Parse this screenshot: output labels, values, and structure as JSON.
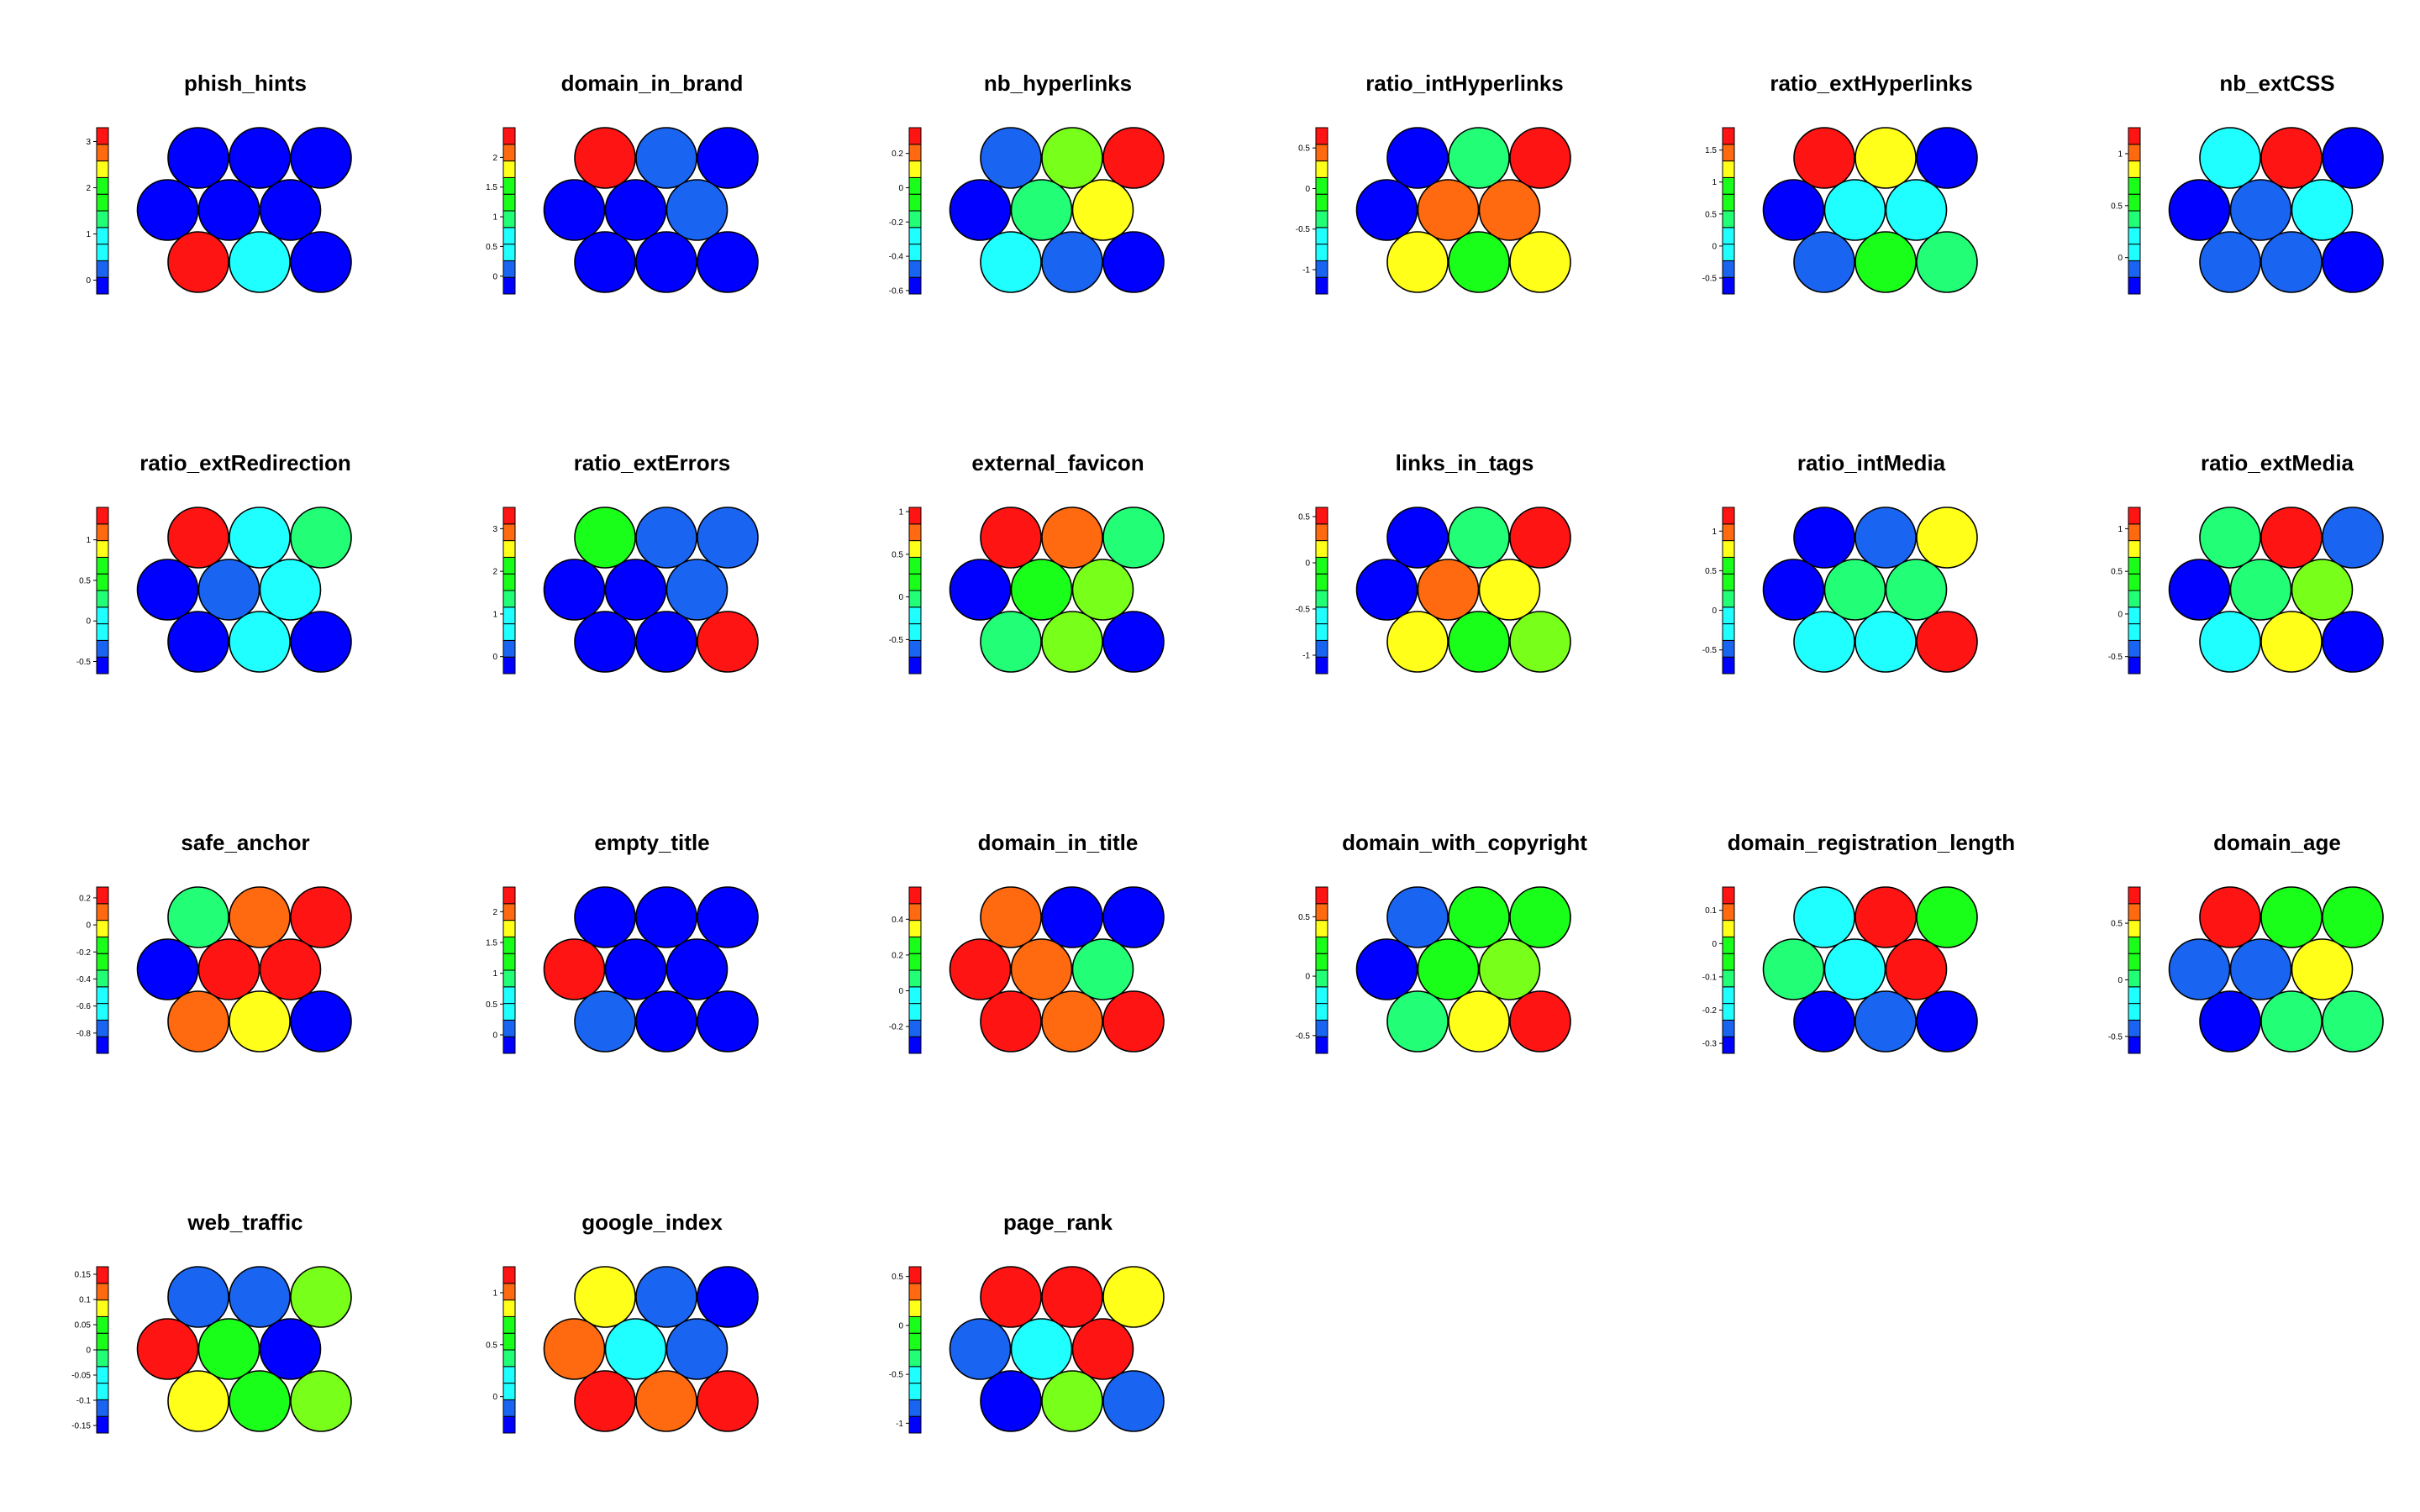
{
  "figure": {
    "palette": [
      "#0000ff",
      "#1764ff",
      "#1aff ff",
      "#20ffff",
      "#22ff6e",
      "#1aff1a",
      "#78ff1a",
      "#ffff1a",
      "#ff6a10",
      "#ff1414"
    ],
    "tile_colors": {
      "blue": "#0000ff",
      "lightblue": "#1a64f2",
      "cyan": "#20ffff",
      "mint": "#22ff77",
      "green": "#1aff1a",
      "lime": "#78ff1a",
      "yellow": "#ffff1a",
      "orange": "#ff6a10",
      "red": "#ff1414"
    }
  },
  "chart_data": [
    {
      "type": "som-heatmap",
      "title": "phish_hints",
      "ticks": [
        "0",
        "1",
        "2",
        "3"
      ],
      "tick_values": [
        0,
        1,
        2,
        3
      ],
      "range": [
        -0.3,
        3.3
      ],
      "nodes": [
        "blue",
        "blue",
        "blue",
        "blue",
        "blue",
        "blue",
        "red",
        "cyan",
        "blue"
      ]
    },
    {
      "type": "som-heatmap",
      "title": "domain_in_brand",
      "ticks": [
        "0",
        "0.5",
        "1",
        "1.5",
        "2"
      ],
      "tick_values": [
        0,
        0.5,
        1,
        1.5,
        2
      ],
      "range": [
        -0.3,
        2.5
      ],
      "nodes": [
        "red",
        "lightblue",
        "blue",
        "blue",
        "blue",
        "lightblue",
        "blue",
        "blue",
        "blue"
      ]
    },
    {
      "type": "som-heatmap",
      "title": "nb_hyperlinks",
      "ticks": [
        "-0.6",
        "-0.4",
        "-0.2",
        "0",
        "0.2"
      ],
      "tick_values": [
        -0.6,
        -0.4,
        -0.2,
        0,
        0.2
      ],
      "range": [
        -0.62,
        0.35
      ],
      "nodes": [
        "lightblue",
        "lime",
        "red",
        "blue",
        "mint",
        "yellow",
        "cyan",
        "lightblue",
        "blue"
      ]
    },
    {
      "type": "som-heatmap",
      "title": "ratio_intHyperlinks",
      "ticks": [
        "-1",
        "-0.5",
        "0",
        "0.5"
      ],
      "tick_values": [
        -1,
        -0.5,
        0,
        0.5
      ],
      "range": [
        -1.3,
        0.75
      ],
      "nodes": [
        "blue",
        "mint",
        "red",
        "blue",
        "orange",
        "orange",
        "yellow",
        "green",
        "yellow"
      ]
    },
    {
      "type": "som-heatmap",
      "title": "ratio_extHyperlinks",
      "ticks": [
        "-0.5",
        "0",
        "0.5",
        "1",
        "1.5"
      ],
      "tick_values": [
        -0.5,
        0,
        0.5,
        1,
        1.5
      ],
      "range": [
        -0.75,
        1.85
      ],
      "nodes": [
        "red",
        "yellow",
        "blue",
        "blue",
        "cyan",
        "cyan",
        "lightblue",
        "green",
        "mint"
      ]
    },
    {
      "type": "som-heatmap",
      "title": "nb_extCSS",
      "ticks": [
        "0",
        "0.5",
        "1"
      ],
      "tick_values": [
        0,
        0.5,
        1
      ],
      "range": [
        -0.35,
        1.25
      ],
      "nodes": [
        "cyan",
        "red",
        "blue",
        "blue",
        "lightblue",
        "cyan",
        "lightblue",
        "lightblue",
        "blue"
      ]
    },
    {
      "type": "som-heatmap",
      "title": "ratio_extRedirection",
      "ticks": [
        "-0.5",
        "0",
        "0.5",
        "1"
      ],
      "tick_values": [
        -0.5,
        0,
        0.5,
        1
      ],
      "range": [
        -0.65,
        1.4
      ],
      "nodes": [
        "red",
        "cyan",
        "mint",
        "blue",
        "lightblue",
        "cyan",
        "blue",
        "cyan",
        "blue"
      ]
    },
    {
      "type": "som-heatmap",
      "title": "ratio_extErrors",
      "ticks": [
        "0",
        "1",
        "2",
        "3"
      ],
      "tick_values": [
        0,
        1,
        2,
        3
      ],
      "range": [
        -0.4,
        3.5
      ],
      "nodes": [
        "green",
        "lightblue",
        "lightblue",
        "blue",
        "blue",
        "lightblue",
        "blue",
        "blue",
        "red"
      ]
    },
    {
      "type": "som-heatmap",
      "title": "external_favicon",
      "ticks": [
        "-0.5",
        "0",
        "0.5",
        "1"
      ],
      "tick_values": [
        -0.5,
        0,
        0.5,
        1
      ],
      "range": [
        -0.9,
        1.05
      ],
      "nodes": [
        "red",
        "orange",
        "mint",
        "blue",
        "green",
        "lime",
        "mint",
        "lime",
        "blue"
      ]
    },
    {
      "type": "som-heatmap",
      "title": "links_in_tags",
      "ticks": [
        "-1",
        "-0.5",
        "0",
        "0.5"
      ],
      "tick_values": [
        -1,
        -0.5,
        0,
        0.5
      ],
      "range": [
        -1.2,
        0.6
      ],
      "nodes": [
        "blue",
        "mint",
        "red",
        "blue",
        "orange",
        "yellow",
        "yellow",
        "green",
        "lime"
      ]
    },
    {
      "type": "som-heatmap",
      "title": "ratio_intMedia",
      "ticks": [
        "-0.5",
        "0",
        "0.5",
        "1"
      ],
      "tick_values": [
        -0.5,
        0,
        0.5,
        1
      ],
      "range": [
        -0.8,
        1.3
      ],
      "nodes": [
        "blue",
        "lightblue",
        "yellow",
        "blue",
        "mint",
        "mint",
        "cyan",
        "cyan",
        "red"
      ]
    },
    {
      "type": "som-heatmap",
      "title": "ratio_extMedia",
      "ticks": [
        "-0.5",
        "0",
        "0.5",
        "1"
      ],
      "tick_values": [
        -0.5,
        0,
        0.5,
        1
      ],
      "range": [
        -0.7,
        1.25
      ],
      "nodes": [
        "mint",
        "red",
        "lightblue",
        "blue",
        "mint",
        "lime",
        "cyan",
        "yellow",
        "blue"
      ]
    },
    {
      "type": "som-heatmap",
      "title": "safe_anchor",
      "ticks": [
        "-0.8",
        "-0.6",
        "-0.4",
        "-0.2",
        "0",
        "0.2"
      ],
      "tick_values": [
        -0.8,
        -0.6,
        -0.4,
        -0.2,
        0,
        0.2
      ],
      "range": [
        -0.95,
        0.28
      ],
      "nodes": [
        "mint",
        "orange",
        "red",
        "blue",
        "red",
        "red",
        "orange",
        "yellow",
        "blue"
      ]
    },
    {
      "type": "som-heatmap",
      "title": "empty_title",
      "ticks": [
        "0",
        "0.5",
        "1",
        "1.5",
        "2"
      ],
      "tick_values": [
        0,
        0.5,
        1,
        1.5,
        2
      ],
      "range": [
        -0.3,
        2.4
      ],
      "nodes": [
        "blue",
        "blue",
        "blue",
        "red",
        "blue",
        "blue",
        "lightblue",
        "blue",
        "blue"
      ]
    },
    {
      "type": "som-heatmap",
      "title": "domain_in_title",
      "ticks": [
        "-0.2",
        "0",
        "0.2",
        "0.4"
      ],
      "tick_values": [
        -0.2,
        0,
        0.2,
        0.4
      ],
      "range": [
        -0.35,
        0.58
      ],
      "nodes": [
        "orange",
        "blue",
        "blue",
        "red",
        "orange",
        "mint",
        "red",
        "orange",
        "red"
      ]
    },
    {
      "type": "som-heatmap",
      "title": "domain_with_copyright",
      "ticks": [
        "-0.5",
        "0",
        "0.5"
      ],
      "tick_values": [
        -0.5,
        0,
        0.5
      ],
      "range": [
        -0.65,
        0.75
      ],
      "nodes": [
        "lightblue",
        "green",
        "green",
        "blue",
        "green",
        "lime",
        "mint",
        "yellow",
        "red"
      ]
    },
    {
      "type": "som-heatmap",
      "title": "domain_registration_length",
      "ticks": [
        "-0.3",
        "-0.2",
        "-0.1",
        "0",
        "0.1"
      ],
      "tick_values": [
        -0.3,
        -0.2,
        -0.1,
        0,
        0.1
      ],
      "range": [
        -0.33,
        0.17
      ],
      "nodes": [
        "cyan",
        "red",
        "green",
        "mint",
        "cyan",
        "red",
        "blue",
        "lightblue",
        "blue"
      ]
    },
    {
      "type": "som-heatmap",
      "title": "domain_age",
      "ticks": [
        "-0.5",
        "0",
        "0.5"
      ],
      "tick_values": [
        -0.5,
        0,
        0.5
      ],
      "range": [
        -0.65,
        0.82
      ],
      "nodes": [
        "red",
        "green",
        "green",
        "lightblue",
        "lightblue",
        "yellow",
        "blue",
        "mint",
        "mint"
      ]
    },
    {
      "type": "som-heatmap",
      "title": "web_traffic",
      "ticks": [
        "-0.15",
        "-0.1",
        "-0.05",
        "0",
        "0.05",
        "0.1",
        "0.15"
      ],
      "tick_values": [
        -0.15,
        -0.1,
        -0.05,
        0,
        0.05,
        0.1,
        0.15
      ],
      "range": [
        -0.165,
        0.165
      ],
      "nodes": [
        "lightblue",
        "lightblue",
        "lime",
        "red",
        "green",
        "blue",
        "yellow",
        "green",
        "lime"
      ]
    },
    {
      "type": "som-heatmap",
      "title": "google_index",
      "ticks": [
        "0",
        "0.5",
        "1"
      ],
      "tick_values": [
        0,
        0.5,
        1
      ],
      "range": [
        -0.35,
        1.25
      ],
      "nodes": [
        "yellow",
        "lightblue",
        "blue",
        "orange",
        "cyan",
        "lightblue",
        "red",
        "orange",
        "red"
      ]
    },
    {
      "type": "som-heatmap",
      "title": "page_rank",
      "ticks": [
        "-1",
        "-0.5",
        "0",
        "0.5"
      ],
      "tick_values": [
        -1,
        -0.5,
        0,
        0.5
      ],
      "range": [
        -1.1,
        0.6
      ],
      "nodes": [
        "red",
        "red",
        "yellow",
        "lightblue",
        "cyan",
        "red",
        "blue",
        "lime",
        "lightblue"
      ]
    }
  ]
}
